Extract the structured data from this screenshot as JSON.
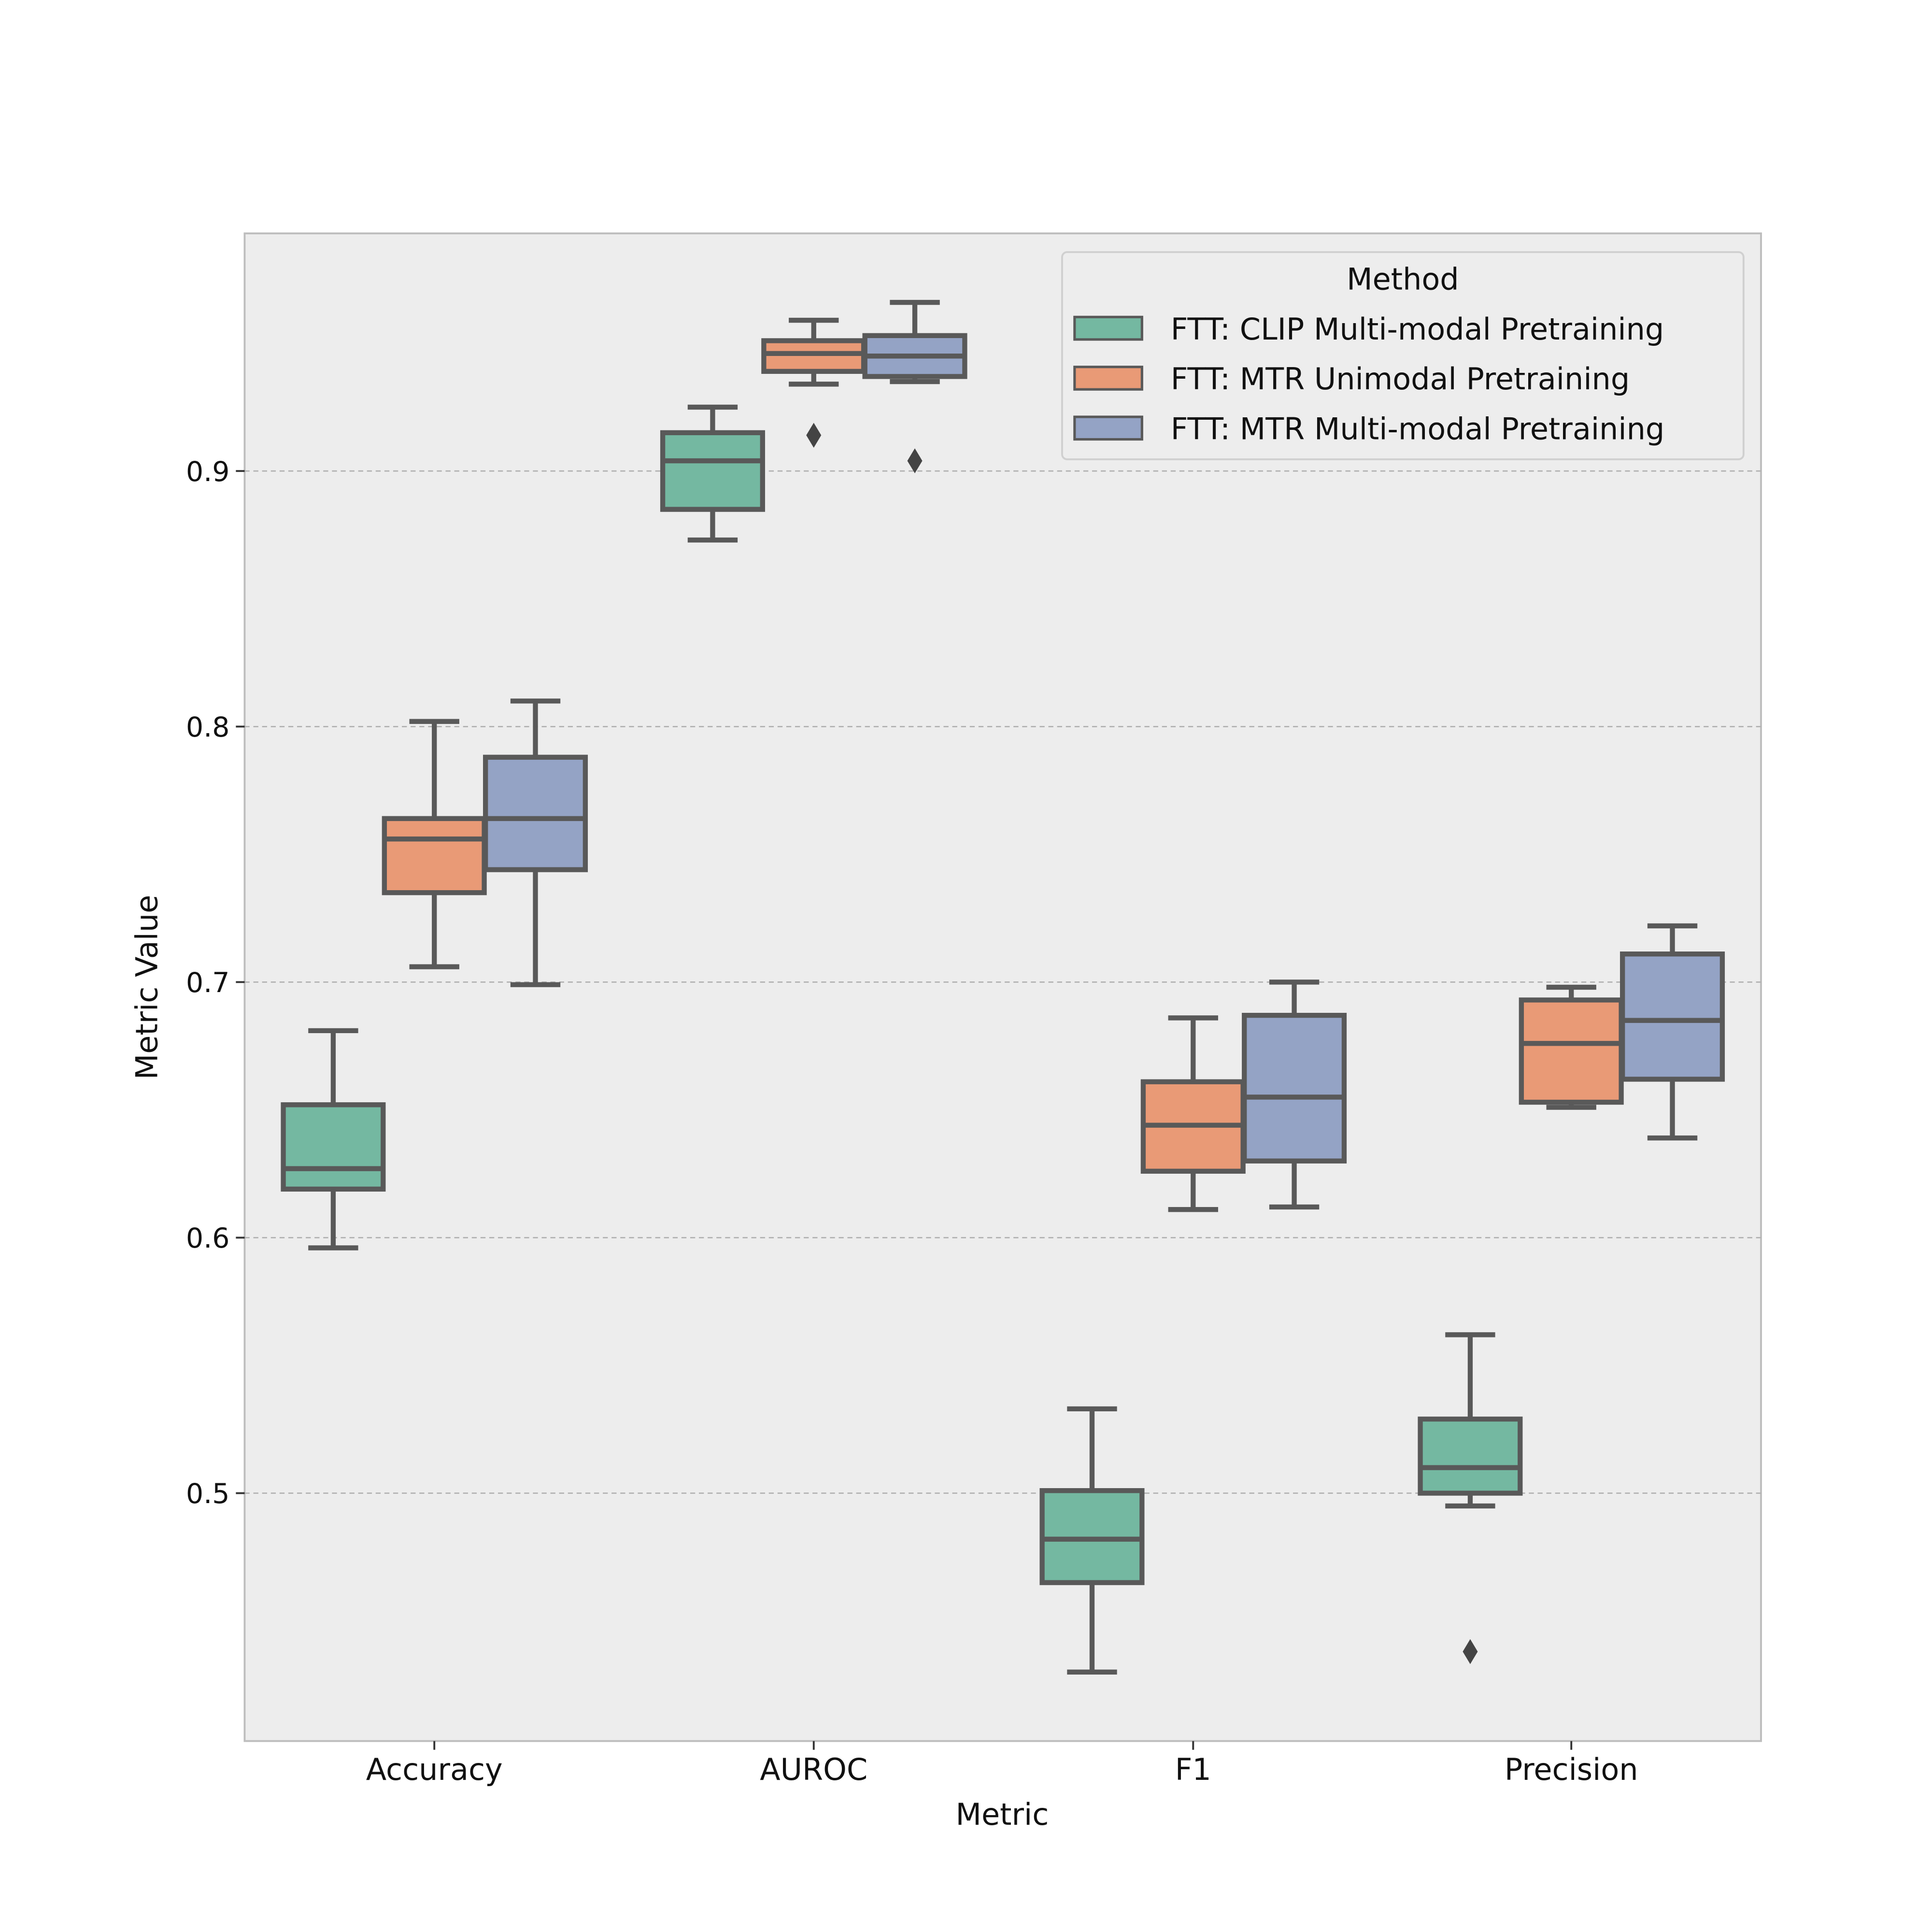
{
  "chart_data": {
    "type": "box",
    "xlabel": "Metric",
    "ylabel": "Metric Value",
    "ylim": [
      0.403,
      0.993
    ],
    "yticks": [
      0.5,
      0.6,
      0.7,
      0.8,
      0.9
    ],
    "ytick_labels": [
      "0.5",
      "0.6",
      "0.7",
      "0.8",
      "0.9"
    ],
    "categories": [
      "Accuracy",
      "AUROC",
      "F1",
      "Precision"
    ],
    "grid": "horizontal dashed",
    "legend": {
      "title": "Method",
      "placement": "top-right"
    },
    "series": [
      {
        "name": "FTT: CLIP Multi-modal Pretraining",
        "color": "#74b8a1",
        "boxes": [
          {
            "whislo": 0.596,
            "q1": 0.619,
            "med": 0.627,
            "q3": 0.652,
            "whishi": 0.681,
            "fliers": []
          },
          {
            "whislo": 0.873,
            "q1": 0.885,
            "med": 0.904,
            "q3": 0.915,
            "whishi": 0.925,
            "fliers": []
          },
          {
            "whislo": 0.43,
            "q1": 0.465,
            "med": 0.482,
            "q3": 0.501,
            "whishi": 0.533,
            "fliers": []
          },
          {
            "whislo": 0.495,
            "q1": 0.5,
            "med": 0.51,
            "q3": 0.529,
            "whishi": 0.562,
            "fliers": [
              0.438
            ]
          }
        ]
      },
      {
        "name": "FTT: MTR Unimodal Pretraining",
        "color": "#e99a76",
        "boxes": [
          {
            "whislo": 0.706,
            "q1": 0.735,
            "med": 0.756,
            "q3": 0.764,
            "whishi": 0.802,
            "fliers": []
          },
          {
            "whislo": 0.934,
            "q1": 0.939,
            "med": 0.946,
            "q3": 0.951,
            "whishi": 0.959,
            "fliers": [
              0.914
            ]
          },
          {
            "whislo": 0.611,
            "q1": 0.626,
            "med": 0.644,
            "q3": 0.661,
            "whishi": 0.686,
            "fliers": []
          },
          {
            "whislo": 0.651,
            "q1": 0.653,
            "med": 0.676,
            "q3": 0.693,
            "whishi": 0.698,
            "fliers": []
          }
        ]
      },
      {
        "name": "FTT: MTR Multi-modal Pretraining",
        "color": "#94a3c5",
        "boxes": [
          {
            "whislo": 0.699,
            "q1": 0.744,
            "med": 0.764,
            "q3": 0.788,
            "whishi": 0.81,
            "fliers": []
          },
          {
            "whislo": 0.935,
            "q1": 0.937,
            "med": 0.945,
            "q3": 0.953,
            "whishi": 0.966,
            "fliers": [
              0.904
            ]
          },
          {
            "whislo": 0.612,
            "q1": 0.63,
            "med": 0.655,
            "q3": 0.687,
            "whishi": 0.7,
            "fliers": []
          },
          {
            "whislo": 0.639,
            "q1": 0.662,
            "med": 0.685,
            "q3": 0.711,
            "whishi": 0.722,
            "fliers": []
          }
        ]
      }
    ]
  }
}
